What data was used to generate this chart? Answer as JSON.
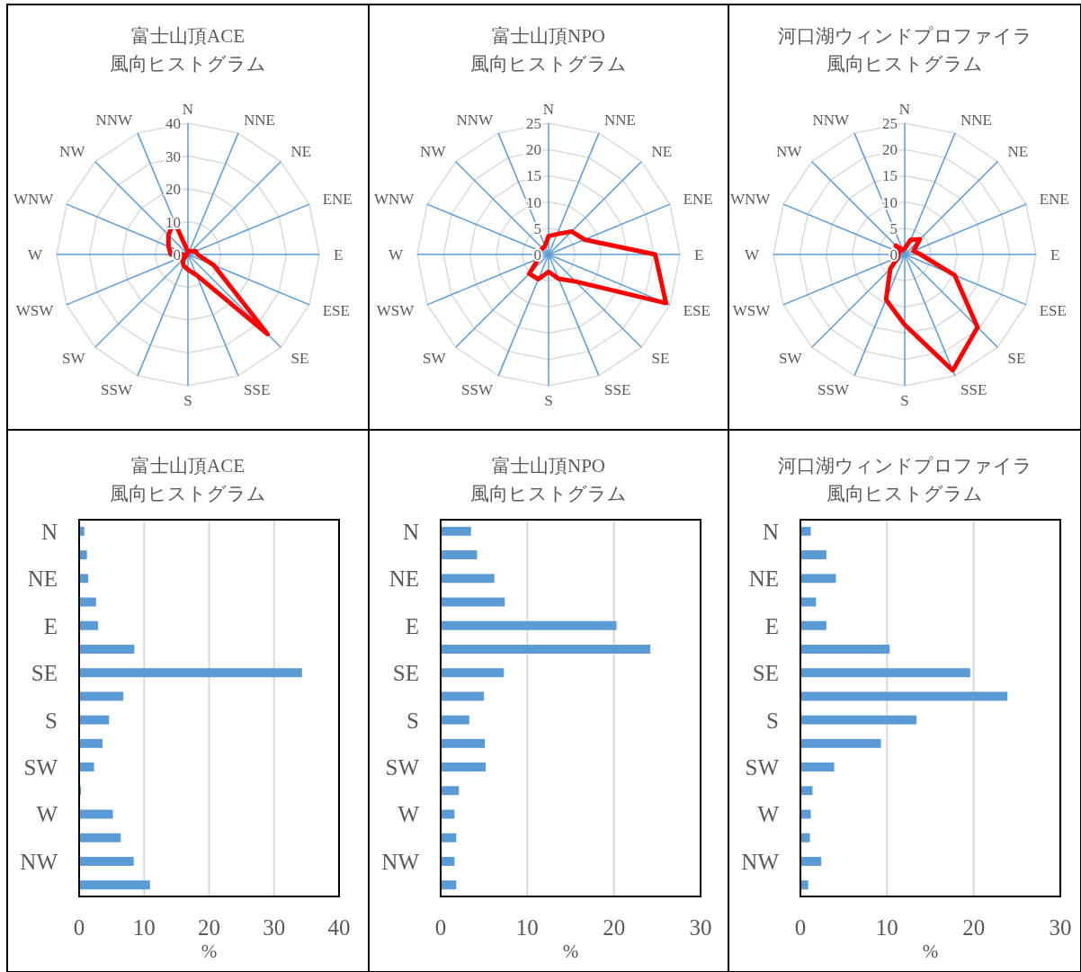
{
  "chart_data": [
    {
      "type": "radar",
      "title": "富士山頂ACE\n風向ヒストグラム",
      "categories": [
        "N",
        "NNE",
        "NE",
        "ENE",
        "E",
        "ESE",
        "SE",
        "SSE",
        "S",
        "SSW",
        "SW",
        "WSW",
        "W",
        "WNW",
        "NW",
        "NNW"
      ],
      "ylim": [
        0,
        40
      ],
      "yticks": [
        0,
        10,
        20,
        30,
        40
      ],
      "grid": true,
      "series": [
        {
          "color": "#ff0000",
          "values": [
            0.8,
            1.2,
            1.4,
            2.6,
            2.9,
            8.5,
            34.3,
            6.8,
            4.6,
            3.6,
            2.3,
            0.3,
            5.2,
            6.4,
            8.4,
            10.9
          ]
        }
      ]
    },
    {
      "type": "radar",
      "title": "富士山頂NPO\n風向ヒストグラム",
      "categories": [
        "N",
        "NNE",
        "NE",
        "ENE",
        "E",
        "ESE",
        "SE",
        "SSE",
        "S",
        "SSW",
        "SW",
        "WSW",
        "W",
        "WNW",
        "NW",
        "NNW"
      ],
      "ylim": [
        0,
        25
      ],
      "yticks": [
        0,
        5,
        10,
        15,
        20,
        25
      ],
      "grid": true,
      "series": [
        {
          "color": "#ff0000",
          "values": [
            3.5,
            4.2,
            6.2,
            7.4,
            20.3,
            24.2,
            7.3,
            5.0,
            3.3,
            5.1,
            5.2,
            2.1,
            1.6,
            1.8,
            1.6,
            1.8
          ]
        }
      ]
    },
    {
      "type": "radar",
      "title": "河口湖ウィンドプロファイラ風向ヒストグラム",
      "categories": [
        "N",
        "NNE",
        "NE",
        "ENE",
        "E",
        "ESE",
        "SE",
        "SSE",
        "S",
        "SSW",
        "SW",
        "WSW",
        "W",
        "WNW",
        "NW",
        "NNW"
      ],
      "ylim": [
        0,
        25
      ],
      "yticks": [
        0,
        5,
        10,
        15,
        20,
        25
      ],
      "grid": true,
      "series": [
        {
          "color": "#ff0000",
          "values": [
            1.2,
            3.0,
            4.1,
            1.8,
            3.0,
            10.3,
            19.6,
            23.9,
            13.4,
            9.3,
            3.9,
            1.4,
            1.2,
            1.1,
            2.4,
            0.9
          ]
        }
      ]
    },
    {
      "type": "bar",
      "orientation": "horizontal",
      "title": "富士山頂ACE\n風向ヒストグラム",
      "xlabel": "%",
      "categories": [
        "N",
        null,
        "NE",
        null,
        "E",
        null,
        "SE",
        null,
        "S",
        null,
        "SW",
        null,
        "W",
        null,
        "NW",
        null
      ],
      "xlim": [
        0,
        40
      ],
      "xticks": [
        0,
        10,
        20,
        30,
        40
      ],
      "grid": "x",
      "color": "#5b9bd5",
      "values": [
        0.8,
        1.2,
        1.4,
        2.6,
        2.9,
        8.5,
        34.3,
        6.8,
        4.6,
        3.6,
        2.3,
        0.3,
        5.2,
        6.4,
        8.4,
        10.9
      ]
    },
    {
      "type": "bar",
      "orientation": "horizontal",
      "title": "富士山頂NPO\n風向ヒストグラム",
      "xlabel": "%",
      "categories": [
        "N",
        null,
        "NE",
        null,
        "E",
        null,
        "SE",
        null,
        "S",
        null,
        "SW",
        null,
        "W",
        null,
        "NW",
        null
      ],
      "xlim": [
        0,
        30
      ],
      "xticks": [
        0,
        10,
        20,
        30
      ],
      "grid": "x",
      "color": "#5b9bd5",
      "values": [
        3.5,
        4.2,
        6.2,
        7.4,
        20.3,
        24.2,
        7.3,
        5.0,
        3.3,
        5.1,
        5.2,
        2.1,
        1.6,
        1.8,
        1.6,
        1.8
      ]
    },
    {
      "type": "bar",
      "orientation": "horizontal",
      "title": "河口湖ウィンドプロファイラ風向ヒストグラム",
      "xlabel": "%",
      "categories": [
        "N",
        null,
        "NE",
        null,
        "E",
        null,
        "SE",
        null,
        "S",
        null,
        "SW",
        null,
        "W",
        null,
        "NW",
        null
      ],
      "xlim": [
        0,
        30
      ],
      "xticks": [
        0,
        10,
        20,
        30
      ],
      "grid": "x",
      "color": "#5b9bd5",
      "values": [
        1.2,
        3.0,
        4.1,
        1.8,
        3.0,
        10.3,
        19.6,
        23.9,
        13.4,
        9.3,
        3.9,
        1.4,
        1.2,
        1.1,
        2.4,
        0.9
      ]
    }
  ]
}
